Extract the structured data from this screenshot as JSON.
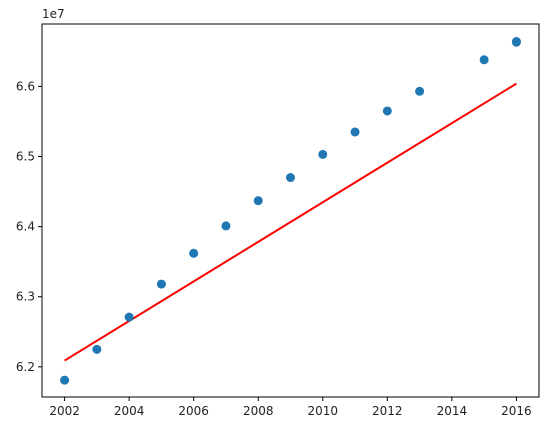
{
  "chart_data": {
    "type": "scatter",
    "offset_text": "1e7",
    "x_ticks": [
      2002,
      2004,
      2006,
      2008,
      2010,
      2012,
      2014,
      2016
    ],
    "y_ticks": [
      6.2,
      6.3,
      6.4,
      6.5,
      6.6
    ],
    "y_tick_labels": [
      "6.2",
      "6.3",
      "6.4",
      "6.5",
      "6.6"
    ],
    "xlim": [
      2001.3,
      2016.7
    ],
    "ylim": [
      6.157,
      6.689
    ],
    "scale": 10000000,
    "points": {
      "x": [
        2002,
        2003,
        2004,
        2005,
        2006,
        2007,
        2008,
        2009,
        2010,
        2011,
        2012,
        2013,
        2015,
        2016,
        2016
      ],
      "y": [
        6.181,
        6.225,
        6.271,
        6.318,
        6.362,
        6.401,
        6.437,
        6.47,
        6.503,
        6.535,
        6.565,
        6.593,
        6.638,
        6.663,
        6.664
      ],
      "color": "#1f77b4"
    },
    "fit_line": {
      "x": [
        2002,
        2016
      ],
      "y": [
        6.209,
        6.604
      ],
      "color": "#ff0000"
    },
    "grid": false,
    "legend": "none"
  }
}
